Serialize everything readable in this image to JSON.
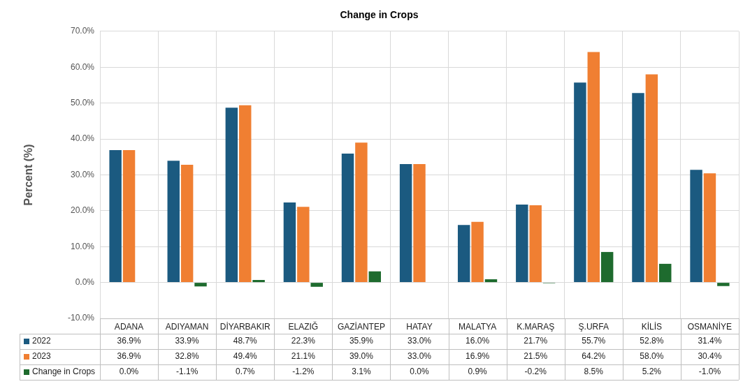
{
  "chart_data": {
    "type": "bar",
    "title": "Change in Crops",
    "ylabel": "Percent (%)",
    "categories": [
      "ADANA",
      "ADIYAMAN",
      "DİYARBAKIR",
      "ELAZIĞ",
      "GAZİANTEP",
      "HATAY",
      "MALATYA",
      "K.MARAŞ",
      "Ş.URFA",
      "KİLİS",
      "OSMANİYE"
    ],
    "series": [
      {
        "name": "2022",
        "color": "#1b5a80",
        "values": [
          36.9,
          33.9,
          48.7,
          22.3,
          35.9,
          33.0,
          16.0,
          21.7,
          55.7,
          52.8,
          31.4
        ],
        "value_labels": [
          "36.9%",
          "33.9%",
          "48.7%",
          "22.3%",
          "35.9%",
          "33.0%",
          "16.0%",
          "21.7%",
          "55.7%",
          "52.8%",
          "31.4%"
        ]
      },
      {
        "name": "2023",
        "color": "#f07f32",
        "values": [
          36.9,
          32.8,
          49.4,
          21.1,
          39.0,
          33.0,
          16.9,
          21.5,
          64.2,
          58.0,
          30.4
        ],
        "value_labels": [
          "36.9%",
          "32.8%",
          "49.4%",
          "21.1%",
          "39.0%",
          "33.0%",
          "16.9%",
          "21.5%",
          "64.2%",
          "58.0%",
          "30.4%"
        ]
      },
      {
        "name": "Change in Crops",
        "color": "#1e6b2e",
        "values": [
          0.0,
          -1.1,
          0.7,
          -1.2,
          3.1,
          0.0,
          0.9,
          -0.2,
          8.5,
          5.2,
          -1.0
        ],
        "value_labels": [
          "0.0%",
          "-1.1%",
          "0.7%",
          "-1.2%",
          "3.1%",
          "0.0%",
          "0.9%",
          "-0.2%",
          "8.5%",
          "5.2%",
          "-1.0%"
        ]
      }
    ],
    "ylim": [
      -10,
      70
    ],
    "yticks": [
      {
        "value": -10,
        "label": "-10.0%"
      },
      {
        "value": 0,
        "label": "0.0%"
      },
      {
        "value": 10,
        "label": "10.0%"
      },
      {
        "value": 20,
        "label": "20.0%"
      },
      {
        "value": 30,
        "label": "30.0%"
      },
      {
        "value": 40,
        "label": "40.0%"
      },
      {
        "value": 50,
        "label": "50.0%"
      },
      {
        "value": 60,
        "label": "60.0%"
      },
      {
        "value": 70,
        "label": "70.0%"
      }
    ],
    "grid": true,
    "legend": "bottom"
  }
}
